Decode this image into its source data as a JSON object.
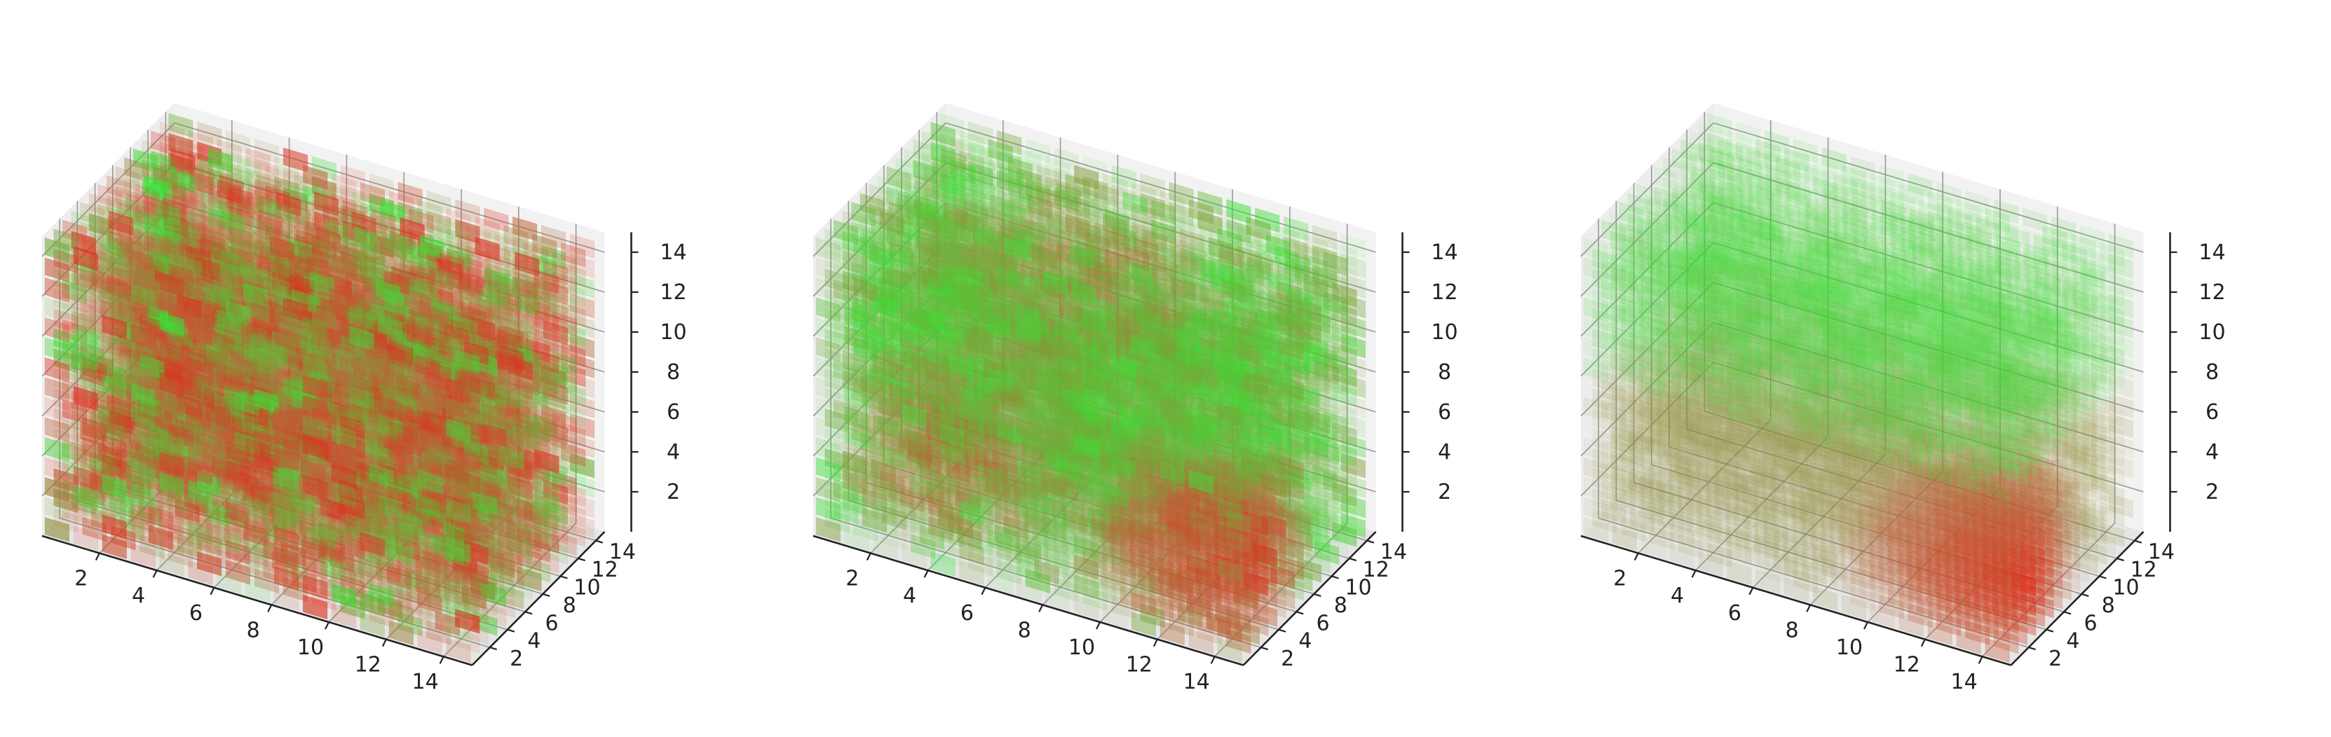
{
  "figure": {
    "panel_count": 3,
    "colors": {
      "green": "#33e533",
      "red": "#e02a1a",
      "brown": "#b86a3c",
      "pane": "#ebebeb"
    }
  },
  "chart_data": [
    {
      "type": "voxel",
      "pattern": "random",
      "grid_size": [
        15,
        15,
        15
      ],
      "xlim": [
        0,
        15
      ],
      "ylim": [
        0,
        15
      ],
      "zlim": [
        0,
        15
      ],
      "x_ticks": [
        "2",
        "4",
        "6",
        "8",
        "10",
        "12",
        "14"
      ],
      "y_ticks": [
        "2",
        "4",
        "6",
        "8",
        "10",
        "12",
        "14"
      ],
      "z_ticks": [
        "2",
        "4",
        "6",
        "8",
        "10",
        "12",
        "14"
      ],
      "grid": true,
      "title": "",
      "xlabel": "",
      "ylabel": "",
      "zlabel": ""
    },
    {
      "type": "voxel",
      "pattern": "blobs",
      "grid_size": [
        15,
        15,
        15
      ],
      "xlim": [
        0,
        15
      ],
      "ylim": [
        0,
        15
      ],
      "zlim": [
        0,
        15
      ],
      "x_ticks": [
        "2",
        "4",
        "6",
        "8",
        "10",
        "12",
        "14"
      ],
      "y_ticks": [
        "2",
        "4",
        "6",
        "8",
        "10",
        "12",
        "14"
      ],
      "z_ticks": [
        "2",
        "4",
        "6",
        "8",
        "10",
        "12",
        "14"
      ],
      "grid": true,
      "title": "",
      "xlabel": "",
      "ylabel": "",
      "zlabel": ""
    },
    {
      "type": "voxel",
      "pattern": "layered",
      "grid_size": [
        15,
        15,
        15
      ],
      "xlim": [
        0,
        15
      ],
      "ylim": [
        0,
        15
      ],
      "zlim": [
        0,
        15
      ],
      "x_ticks": [
        "2",
        "4",
        "6",
        "8",
        "10",
        "12",
        "14"
      ],
      "y_ticks": [
        "2",
        "4",
        "6",
        "8",
        "10",
        "12",
        "14"
      ],
      "z_ticks": [
        "2",
        "4",
        "6",
        "8",
        "10",
        "12",
        "14"
      ],
      "grid": true,
      "title": "",
      "xlabel": "",
      "ylabel": "",
      "zlabel": ""
    }
  ]
}
